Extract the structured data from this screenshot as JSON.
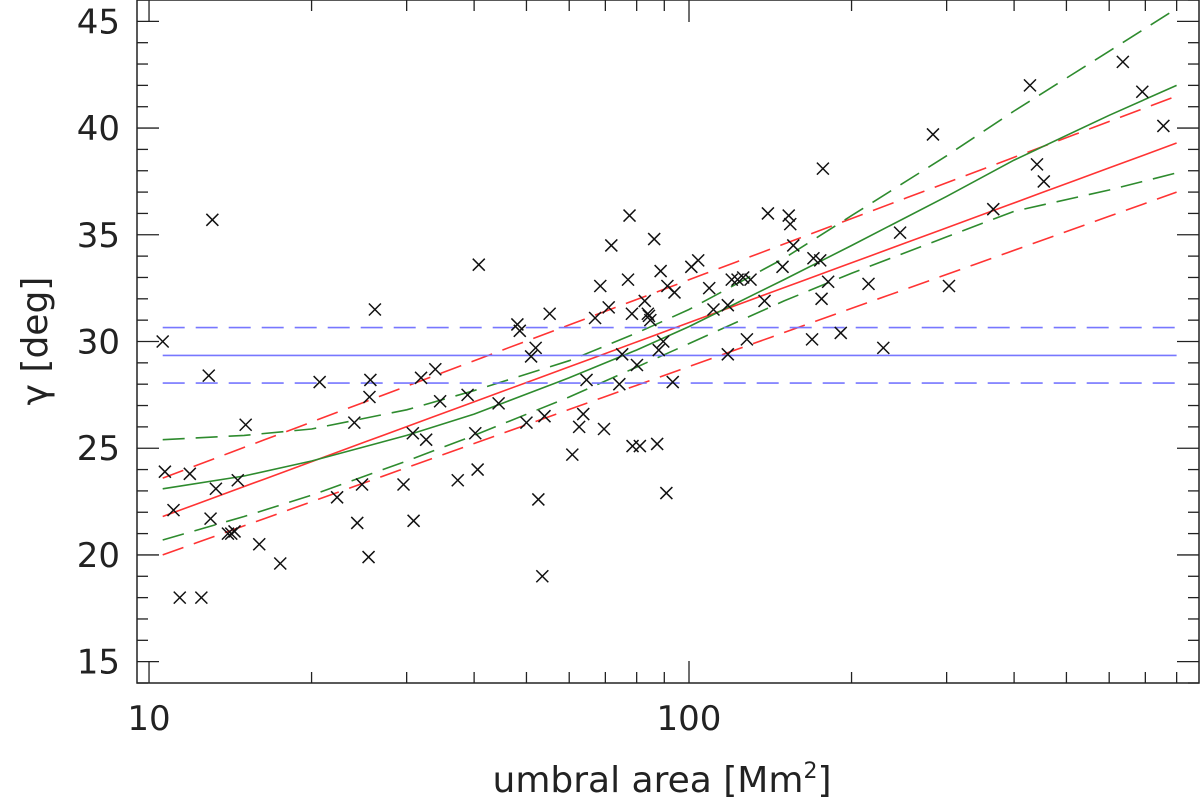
{
  "chart_data": {
    "type": "scatter",
    "title": "",
    "xlabel": "umbral area [Mm",
    "xlabel_sup": "2",
    "xlabel_close": "]",
    "ylabel": "γ [deg]",
    "xscale": "log",
    "xlim": [
      9.5,
      880
    ],
    "ylim": [
      14,
      46
    ],
    "xticks_major": [
      10,
      100
    ],
    "xtick_labels": [
      "10",
      "100"
    ],
    "yticks": [
      15,
      20,
      25,
      30,
      35,
      40,
      45
    ],
    "ytick_labels": [
      "15",
      "20",
      "25",
      "30",
      "35",
      "40",
      "45"
    ],
    "grid": false,
    "colors": {
      "points": "#111111",
      "red": "#ff3333",
      "green": "#2e8b2e",
      "blue": "#7777ff"
    },
    "points": [
      [
        10.6,
        30.0
      ],
      [
        10.7,
        23.9
      ],
      [
        11.1,
        22.1
      ],
      [
        11.4,
        18.0
      ],
      [
        11.9,
        23.8
      ],
      [
        12.5,
        18.0
      ],
      [
        12.9,
        28.4
      ],
      [
        13.0,
        21.7
      ],
      [
        13.1,
        35.7
      ],
      [
        13.3,
        23.1
      ],
      [
        14.0,
        21.0
      ],
      [
        14.2,
        21.0
      ],
      [
        14.4,
        21.1
      ],
      [
        14.6,
        23.5
      ],
      [
        15.1,
        26.1
      ],
      [
        16.0,
        20.5
      ],
      [
        17.5,
        19.6
      ],
      [
        20.7,
        28.1
      ],
      [
        22.3,
        22.7
      ],
      [
        24.0,
        26.2
      ],
      [
        24.3,
        21.5
      ],
      [
        24.8,
        23.3
      ],
      [
        25.5,
        19.9
      ],
      [
        25.6,
        27.4
      ],
      [
        25.7,
        28.2
      ],
      [
        26.2,
        31.5
      ],
      [
        29.6,
        23.3
      ],
      [
        30.8,
        25.7
      ],
      [
        30.9,
        21.6
      ],
      [
        31.9,
        28.3
      ],
      [
        32.6,
        25.4
      ],
      [
        33.9,
        28.7
      ],
      [
        34.6,
        27.2
      ],
      [
        37.3,
        23.5
      ],
      [
        38.9,
        27.5
      ],
      [
        40.2,
        25.7
      ],
      [
        40.6,
        24.0
      ],
      [
        40.8,
        33.6
      ],
      [
        44.4,
        27.1
      ],
      [
        48.1,
        30.8
      ],
      [
        48.6,
        30.5
      ],
      [
        50.0,
        26.2
      ],
      [
        51.0,
        29.3
      ],
      [
        52.0,
        29.7
      ],
      [
        52.6,
        22.6
      ],
      [
        53.5,
        19.0
      ],
      [
        54.0,
        26.5
      ],
      [
        55.2,
        31.3
      ],
      [
        60.8,
        24.7
      ],
      [
        62.6,
        26.0
      ],
      [
        63.7,
        26.6
      ],
      [
        64.6,
        28.2
      ],
      [
        67.0,
        31.1
      ],
      [
        68.5,
        32.6
      ],
      [
        69.6,
        25.9
      ],
      [
        71.0,
        31.6
      ],
      [
        71.8,
        34.5
      ],
      [
        74.3,
        28.0
      ],
      [
        75.2,
        29.4
      ],
      [
        77.1,
        32.9
      ],
      [
        77.6,
        35.9
      ],
      [
        78.4,
        31.3
      ],
      [
        78.6,
        25.1
      ],
      [
        80.1,
        28.9
      ],
      [
        81.1,
        25.1
      ],
      [
        82.8,
        31.9
      ],
      [
        83.9,
        31.3
      ],
      [
        84.3,
        31.2
      ],
      [
        84.8,
        31.0
      ],
      [
        86.2,
        34.8
      ],
      [
        87.3,
        25.2
      ],
      [
        87.9,
        29.6
      ],
      [
        88.6,
        33.3
      ],
      [
        89.6,
        30.0
      ],
      [
        90.8,
        22.9
      ],
      [
        91.2,
        32.6
      ],
      [
        93.3,
        28.1
      ],
      [
        94.0,
        32.3
      ],
      [
        101.0,
        33.5
      ],
      [
        104.0,
        33.8
      ],
      [
        109.0,
        32.5
      ],
      [
        111.0,
        31.5
      ],
      [
        118.0,
        29.4
      ],
      [
        118.0,
        31.7
      ],
      [
        120.0,
        32.9
      ],
      [
        123.0,
        32.9
      ],
      [
        126.0,
        33.0
      ],
      [
        128.0,
        30.1
      ],
      [
        130.0,
        32.9
      ],
      [
        138.0,
        31.9
      ],
      [
        140.0,
        36.0
      ],
      [
        149.0,
        33.5
      ],
      [
        153.0,
        35.9
      ],
      [
        154.0,
        35.5
      ],
      [
        156.0,
        34.5
      ],
      [
        169.0,
        30.1
      ],
      [
        170.0,
        33.9
      ],
      [
        175.0,
        33.8
      ],
      [
        176.0,
        32.0
      ],
      [
        177.0,
        38.1
      ],
      [
        181.0,
        32.8
      ],
      [
        191.0,
        30.4
      ],
      [
        215.0,
        32.7
      ],
      [
        229.0,
        29.7
      ],
      [
        246.0,
        35.1
      ],
      [
        283.0,
        39.7
      ],
      [
        303.0,
        32.6
      ],
      [
        366.0,
        36.2
      ],
      [
        428.0,
        42.0
      ],
      [
        441.0,
        38.3
      ],
      [
        454.0,
        37.5
      ],
      [
        636.0,
        43.1
      ],
      [
        691.0,
        41.7
      ],
      [
        756.0,
        40.1
      ]
    ],
    "series": [
      {
        "color": "red",
        "style": "solid",
        "x": [
          10.6,
          800
        ],
        "y": [
          21.8,
          39.3
        ]
      },
      {
        "color": "red",
        "style": "dashed",
        "x": [
          10.6,
          800
        ],
        "y": [
          23.6,
          41.5
        ]
      },
      {
        "color": "red",
        "style": "dashed",
        "x": [
          10.6,
          800
        ],
        "y": [
          20.0,
          37.0
        ]
      },
      {
        "color": "green",
        "style": "solid",
        "x": [
          10.6,
          15,
          20,
          30,
          40,
          60,
          80,
          100,
          150,
          200,
          300,
          400,
          600,
          800
        ],
        "y": [
          23.1,
          23.7,
          24.4,
          25.6,
          26.6,
          28.3,
          29.6,
          30.7,
          32.9,
          34.5,
          36.8,
          38.5,
          40.6,
          42.0
        ]
      },
      {
        "color": "green",
        "style": "dashed",
        "x": [
          10.6,
          15,
          20,
          30,
          40,
          60,
          80,
          100,
          150,
          200,
          300,
          400,
          600,
          800
        ],
        "y": [
          25.4,
          25.6,
          25.9,
          26.8,
          27.7,
          29.1,
          30.4,
          31.5,
          33.9,
          35.9,
          38.7,
          40.8,
          43.6,
          45.6
        ]
      },
      {
        "color": "green",
        "style": "dashed",
        "x": [
          10.6,
          15,
          20,
          30,
          40,
          60,
          80,
          100,
          150,
          200,
          300,
          400,
          600,
          800
        ],
        "y": [
          20.7,
          21.8,
          22.8,
          24.4,
          25.6,
          27.4,
          28.8,
          29.9,
          31.9,
          33.2,
          34.9,
          36.1,
          37.1,
          37.9
        ]
      },
      {
        "color": "blue",
        "style": "solid",
        "x": [
          10.6,
          800
        ],
        "y": [
          29.35,
          29.35
        ]
      },
      {
        "color": "blue",
        "style": "dashed",
        "x": [
          10.6,
          800
        ],
        "y": [
          30.65,
          30.65
        ]
      },
      {
        "color": "blue",
        "style": "dashed",
        "x": [
          10.6,
          800
        ],
        "y": [
          28.05,
          28.05
        ]
      }
    ]
  }
}
